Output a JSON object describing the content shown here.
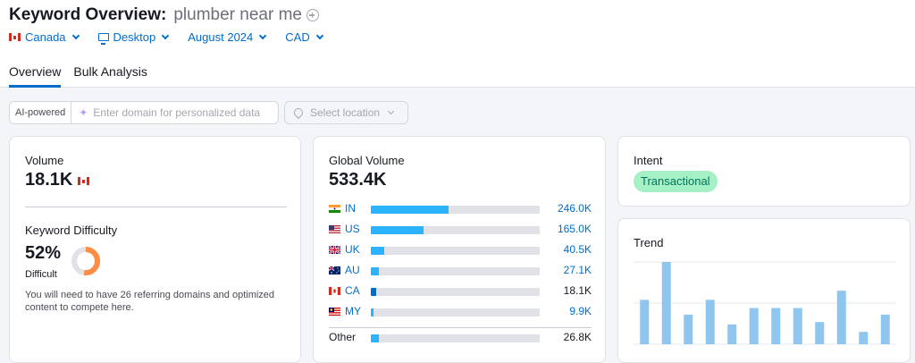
{
  "header": {
    "title": "Keyword Overview:",
    "keyword": "plumber near me",
    "filters": {
      "country": "Canada",
      "device": "Desktop",
      "date": "August 2024",
      "currency": "CAD"
    },
    "tabs": [
      {
        "label": "Overview",
        "active": true
      },
      {
        "label": "Bulk Analysis",
        "active": false
      }
    ]
  },
  "toolbar": {
    "ai_tag": "AI-powered",
    "domain_placeholder": "Enter domain for personalized data",
    "location_placeholder": "Select location"
  },
  "volume": {
    "label": "Volume",
    "value": "18.1K",
    "flag": "canada-flag-icon"
  },
  "keyword_difficulty": {
    "label": "Keyword Difficulty",
    "value": "52%",
    "level": "Difficult",
    "percent": 52,
    "color": "#ff8c43",
    "description": "You will need to have 26 referring domains and optimized content to compete here."
  },
  "global_volume": {
    "label": "Global Volume",
    "value": "533.4K",
    "countries": [
      {
        "code": "IN",
        "value": "246.0K",
        "share": 0.46,
        "link": true,
        "flag": "india-flag-icon"
      },
      {
        "code": "US",
        "value": "165.0K",
        "share": 0.31,
        "link": true,
        "flag": "usa-flag-icon"
      },
      {
        "code": "UK",
        "value": "40.5K",
        "share": 0.08,
        "link": true,
        "flag": "uk-flag-icon"
      },
      {
        "code": "AU",
        "value": "27.1K",
        "share": 0.05,
        "link": true,
        "flag": "australia-flag-icon"
      },
      {
        "code": "CA",
        "value": "18.1K",
        "share": 0.034,
        "link": false,
        "flag": "canada-flag-icon"
      },
      {
        "code": "MY",
        "value": "9.9K",
        "share": 0.018,
        "link": true,
        "flag": "malaysia-flag-icon"
      }
    ],
    "other": {
      "label": "Other",
      "value": "26.8K",
      "share": 0.05
    }
  },
  "intent": {
    "label": "Intent",
    "value": "Transactional",
    "color": "#a6f0c6"
  },
  "trend": {
    "label": "Trend"
  },
  "chart_data": {
    "type": "bar",
    "title": "Trend",
    "values": [
      54,
      100,
      36,
      54,
      24,
      44,
      44,
      44,
      27,
      65,
      15,
      36
    ],
    "ylim": [
      0,
      100
    ],
    "bar_color": "#8fc6f0"
  },
  "colors": {
    "accent": "#006dca",
    "bar_light": "#2bb3ff",
    "bar_dark": "#006dca",
    "track": "#e0e2e8"
  }
}
